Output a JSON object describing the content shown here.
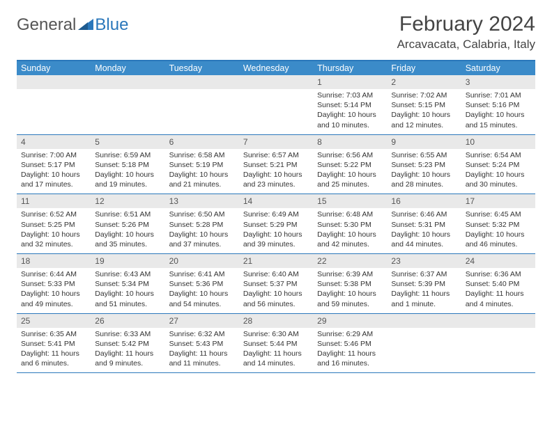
{
  "logo": {
    "general": "General",
    "blue": "Blue"
  },
  "title": "February 2024",
  "location": "Arcavacata, Calabria, Italy",
  "colors": {
    "header_bar": "#3b8bc9",
    "border": "#2a77bb",
    "daynum_bg": "#e9e9e9",
    "text": "#333333"
  },
  "weekdays": [
    "Sunday",
    "Monday",
    "Tuesday",
    "Wednesday",
    "Thursday",
    "Friday",
    "Saturday"
  ],
  "weeks": [
    [
      null,
      null,
      null,
      null,
      {
        "n": "1",
        "sr": "7:03 AM",
        "ss": "5:14 PM",
        "dl": "10 hours and 10 minutes."
      },
      {
        "n": "2",
        "sr": "7:02 AM",
        "ss": "5:15 PM",
        "dl": "10 hours and 12 minutes."
      },
      {
        "n": "3",
        "sr": "7:01 AM",
        "ss": "5:16 PM",
        "dl": "10 hours and 15 minutes."
      }
    ],
    [
      {
        "n": "4",
        "sr": "7:00 AM",
        "ss": "5:17 PM",
        "dl": "10 hours and 17 minutes."
      },
      {
        "n": "5",
        "sr": "6:59 AM",
        "ss": "5:18 PM",
        "dl": "10 hours and 19 minutes."
      },
      {
        "n": "6",
        "sr": "6:58 AM",
        "ss": "5:19 PM",
        "dl": "10 hours and 21 minutes."
      },
      {
        "n": "7",
        "sr": "6:57 AM",
        "ss": "5:21 PM",
        "dl": "10 hours and 23 minutes."
      },
      {
        "n": "8",
        "sr": "6:56 AM",
        "ss": "5:22 PM",
        "dl": "10 hours and 25 minutes."
      },
      {
        "n": "9",
        "sr": "6:55 AM",
        "ss": "5:23 PM",
        "dl": "10 hours and 28 minutes."
      },
      {
        "n": "10",
        "sr": "6:54 AM",
        "ss": "5:24 PM",
        "dl": "10 hours and 30 minutes."
      }
    ],
    [
      {
        "n": "11",
        "sr": "6:52 AM",
        "ss": "5:25 PM",
        "dl": "10 hours and 32 minutes."
      },
      {
        "n": "12",
        "sr": "6:51 AM",
        "ss": "5:26 PM",
        "dl": "10 hours and 35 minutes."
      },
      {
        "n": "13",
        "sr": "6:50 AM",
        "ss": "5:28 PM",
        "dl": "10 hours and 37 minutes."
      },
      {
        "n": "14",
        "sr": "6:49 AM",
        "ss": "5:29 PM",
        "dl": "10 hours and 39 minutes."
      },
      {
        "n": "15",
        "sr": "6:48 AM",
        "ss": "5:30 PM",
        "dl": "10 hours and 42 minutes."
      },
      {
        "n": "16",
        "sr": "6:46 AM",
        "ss": "5:31 PM",
        "dl": "10 hours and 44 minutes."
      },
      {
        "n": "17",
        "sr": "6:45 AM",
        "ss": "5:32 PM",
        "dl": "10 hours and 46 minutes."
      }
    ],
    [
      {
        "n": "18",
        "sr": "6:44 AM",
        "ss": "5:33 PM",
        "dl": "10 hours and 49 minutes."
      },
      {
        "n": "19",
        "sr": "6:43 AM",
        "ss": "5:34 PM",
        "dl": "10 hours and 51 minutes."
      },
      {
        "n": "20",
        "sr": "6:41 AM",
        "ss": "5:36 PM",
        "dl": "10 hours and 54 minutes."
      },
      {
        "n": "21",
        "sr": "6:40 AM",
        "ss": "5:37 PM",
        "dl": "10 hours and 56 minutes."
      },
      {
        "n": "22",
        "sr": "6:39 AM",
        "ss": "5:38 PM",
        "dl": "10 hours and 59 minutes."
      },
      {
        "n": "23",
        "sr": "6:37 AM",
        "ss": "5:39 PM",
        "dl": "11 hours and 1 minute."
      },
      {
        "n": "24",
        "sr": "6:36 AM",
        "ss": "5:40 PM",
        "dl": "11 hours and 4 minutes."
      }
    ],
    [
      {
        "n": "25",
        "sr": "6:35 AM",
        "ss": "5:41 PM",
        "dl": "11 hours and 6 minutes."
      },
      {
        "n": "26",
        "sr": "6:33 AM",
        "ss": "5:42 PM",
        "dl": "11 hours and 9 minutes."
      },
      {
        "n": "27",
        "sr": "6:32 AM",
        "ss": "5:43 PM",
        "dl": "11 hours and 11 minutes."
      },
      {
        "n": "28",
        "sr": "6:30 AM",
        "ss": "5:44 PM",
        "dl": "11 hours and 14 minutes."
      },
      {
        "n": "29",
        "sr": "6:29 AM",
        "ss": "5:46 PM",
        "dl": "11 hours and 16 minutes."
      },
      null,
      null
    ]
  ],
  "labels": {
    "sunrise": "Sunrise:",
    "sunset": "Sunset:",
    "daylight": "Daylight:"
  }
}
